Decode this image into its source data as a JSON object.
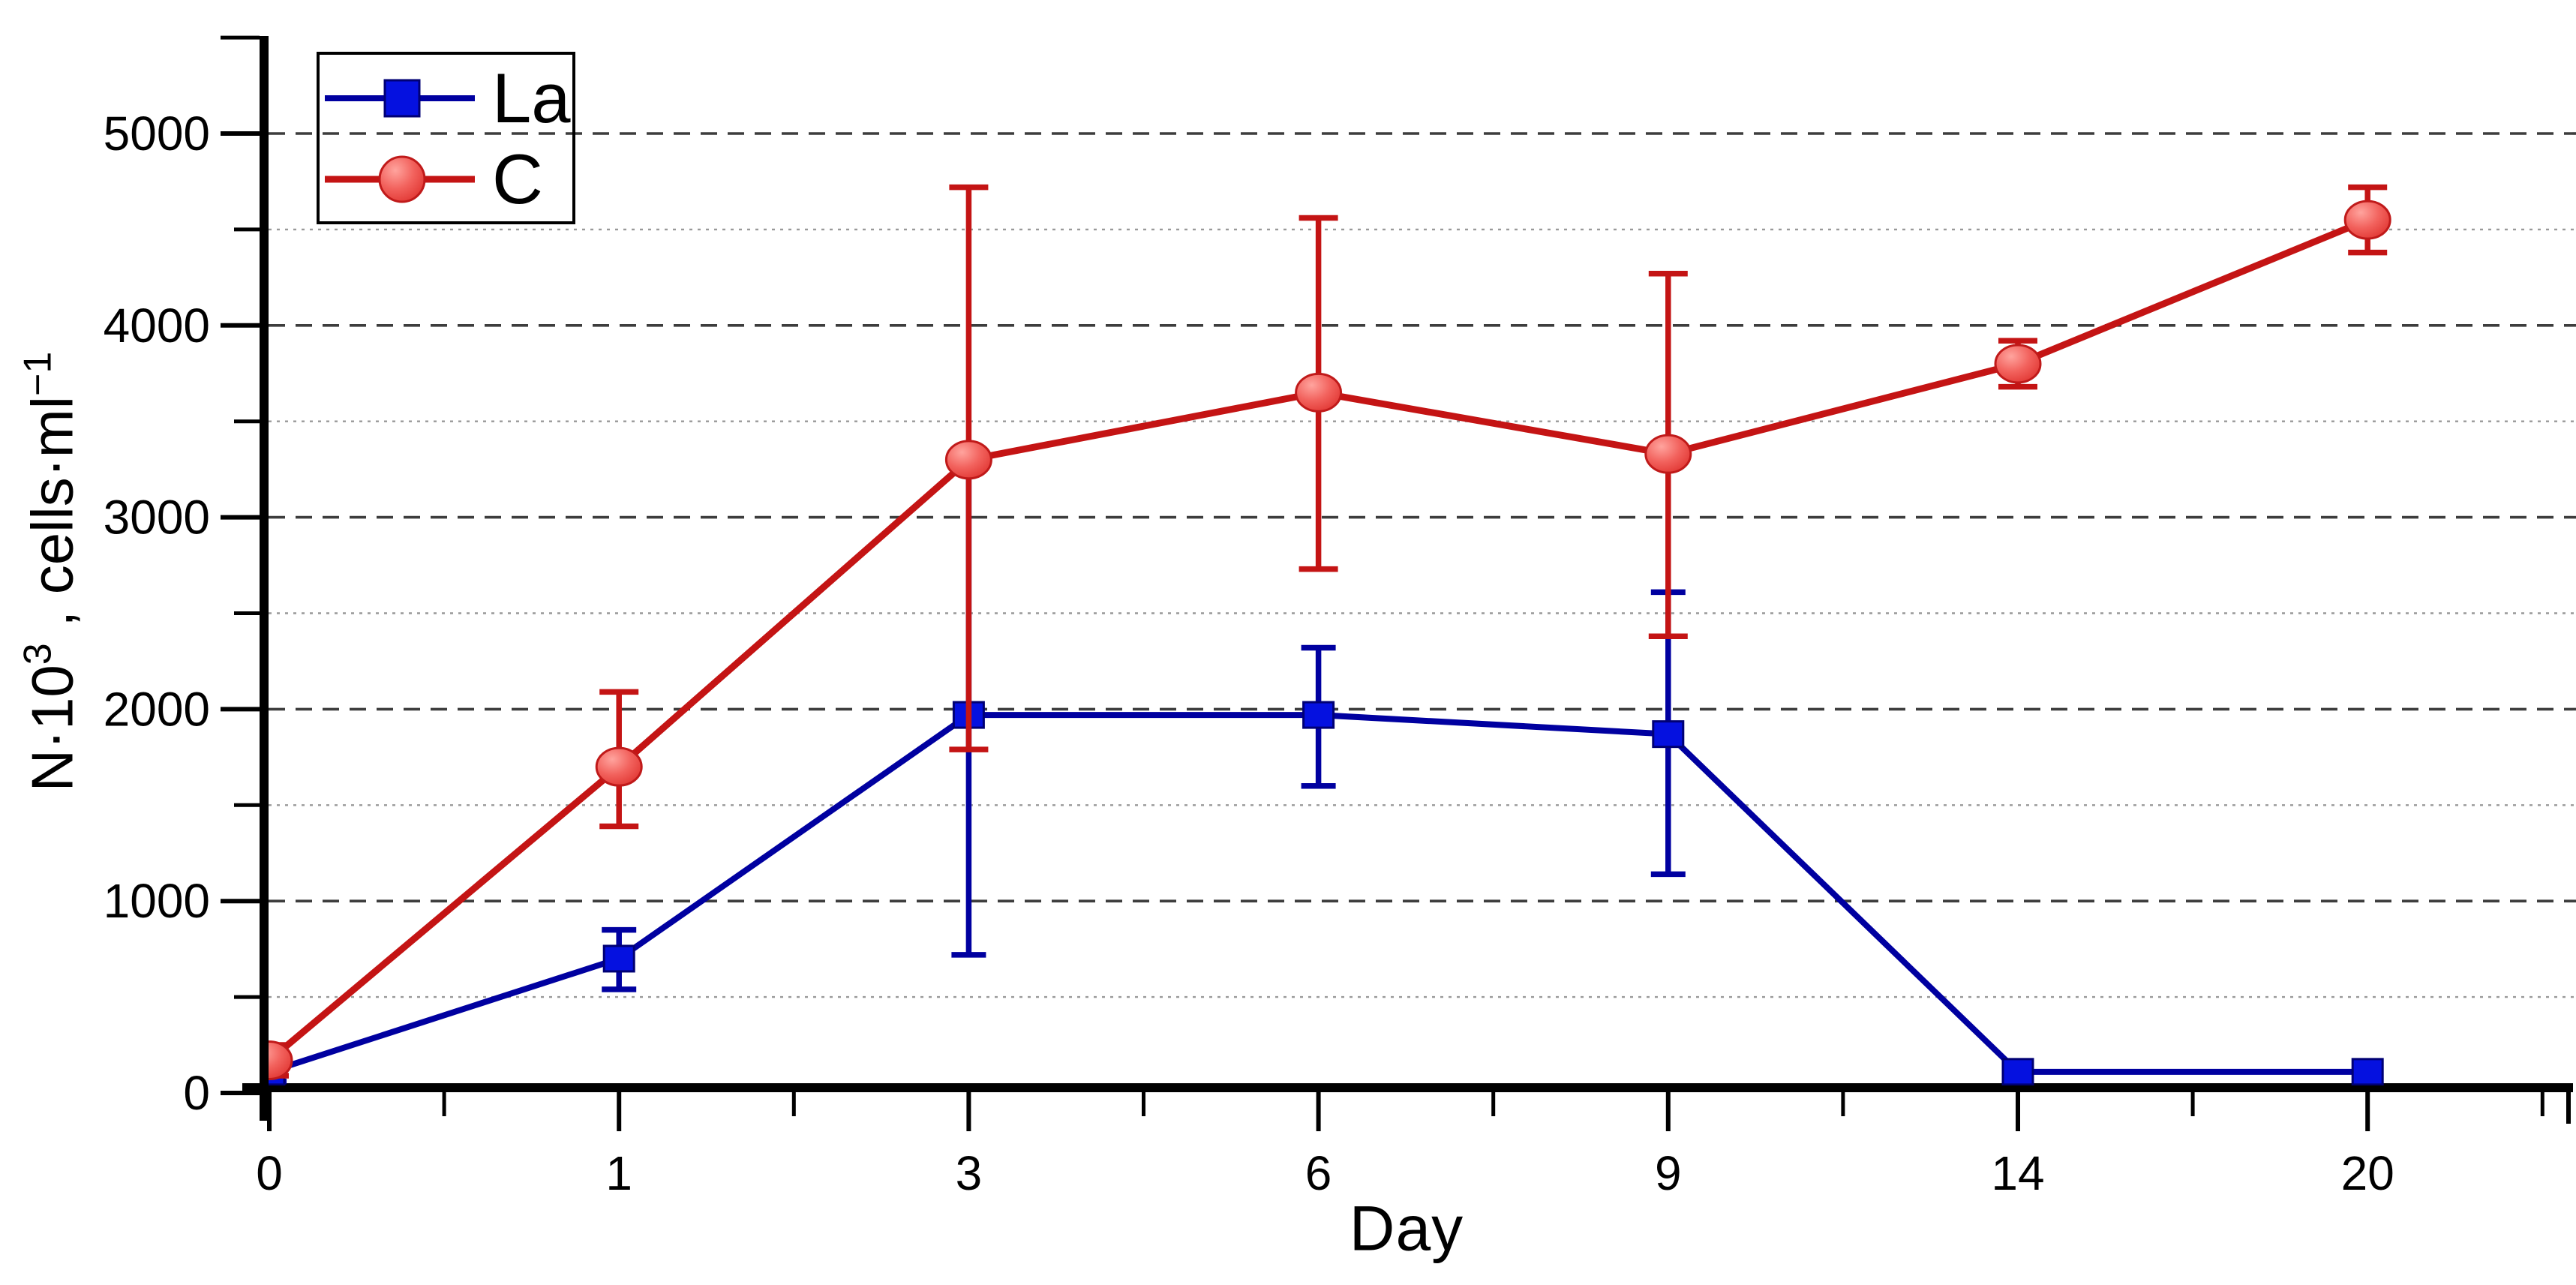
{
  "chart_data": {
    "type": "line",
    "title": "",
    "xlabel": "Day",
    "ylabel": "N·10³ , cells·ml⁻¹",
    "ylabel_parts": {
      "base1": "N·10",
      "sup1": "3",
      "base2": " , cells·ml",
      "sup2": "−1"
    },
    "categories": [
      "0",
      "1",
      "3",
      "6",
      "9",
      "14",
      "20"
    ],
    "x_values": [
      0,
      1,
      3,
      6,
      9,
      14,
      20
    ],
    "y_ticks": [
      "0",
      "1000",
      "2000",
      "3000",
      "4000",
      "5000"
    ],
    "y_tick_values": [
      0,
      1000,
      2000,
      3000,
      4000,
      5000
    ],
    "ylim": [
      0,
      5500
    ],
    "grid": {
      "major_horizontal": "dashed",
      "minor_horizontal": "dotted",
      "vertical": "none"
    },
    "legend_position": "top-left",
    "series": [
      {
        "name": "La",
        "marker": "square",
        "line_color": "#0000a0",
        "marker_fill": "#0511e0",
        "marker_stroke": "#000074",
        "values": [
          110,
          700,
          1970,
          1970,
          1870,
          110,
          110
        ],
        "err_plus": [
          50,
          150,
          1330,
          350,
          740,
          0,
          0
        ],
        "err_minus": [
          50,
          160,
          1250,
          370,
          730,
          0,
          0
        ]
      },
      {
        "name": "C",
        "marker": "circle",
        "line_color": "#c41414",
        "marker_fill": "#f2625d",
        "marker_stroke": "#c01a1a",
        "values": [
          170,
          1700,
          3300,
          3650,
          3330,
          3800,
          4550
        ],
        "err_plus": [
          80,
          390,
          1420,
          910,
          940,
          120,
          170
        ],
        "err_minus": [
          80,
          310,
          1510,
          920,
          950,
          120,
          170
        ]
      }
    ],
    "colors": {
      "axis": "#000000",
      "major_grid": "#3d3d3d",
      "minor_grid": "#999999",
      "background": "#ffffff"
    }
  }
}
